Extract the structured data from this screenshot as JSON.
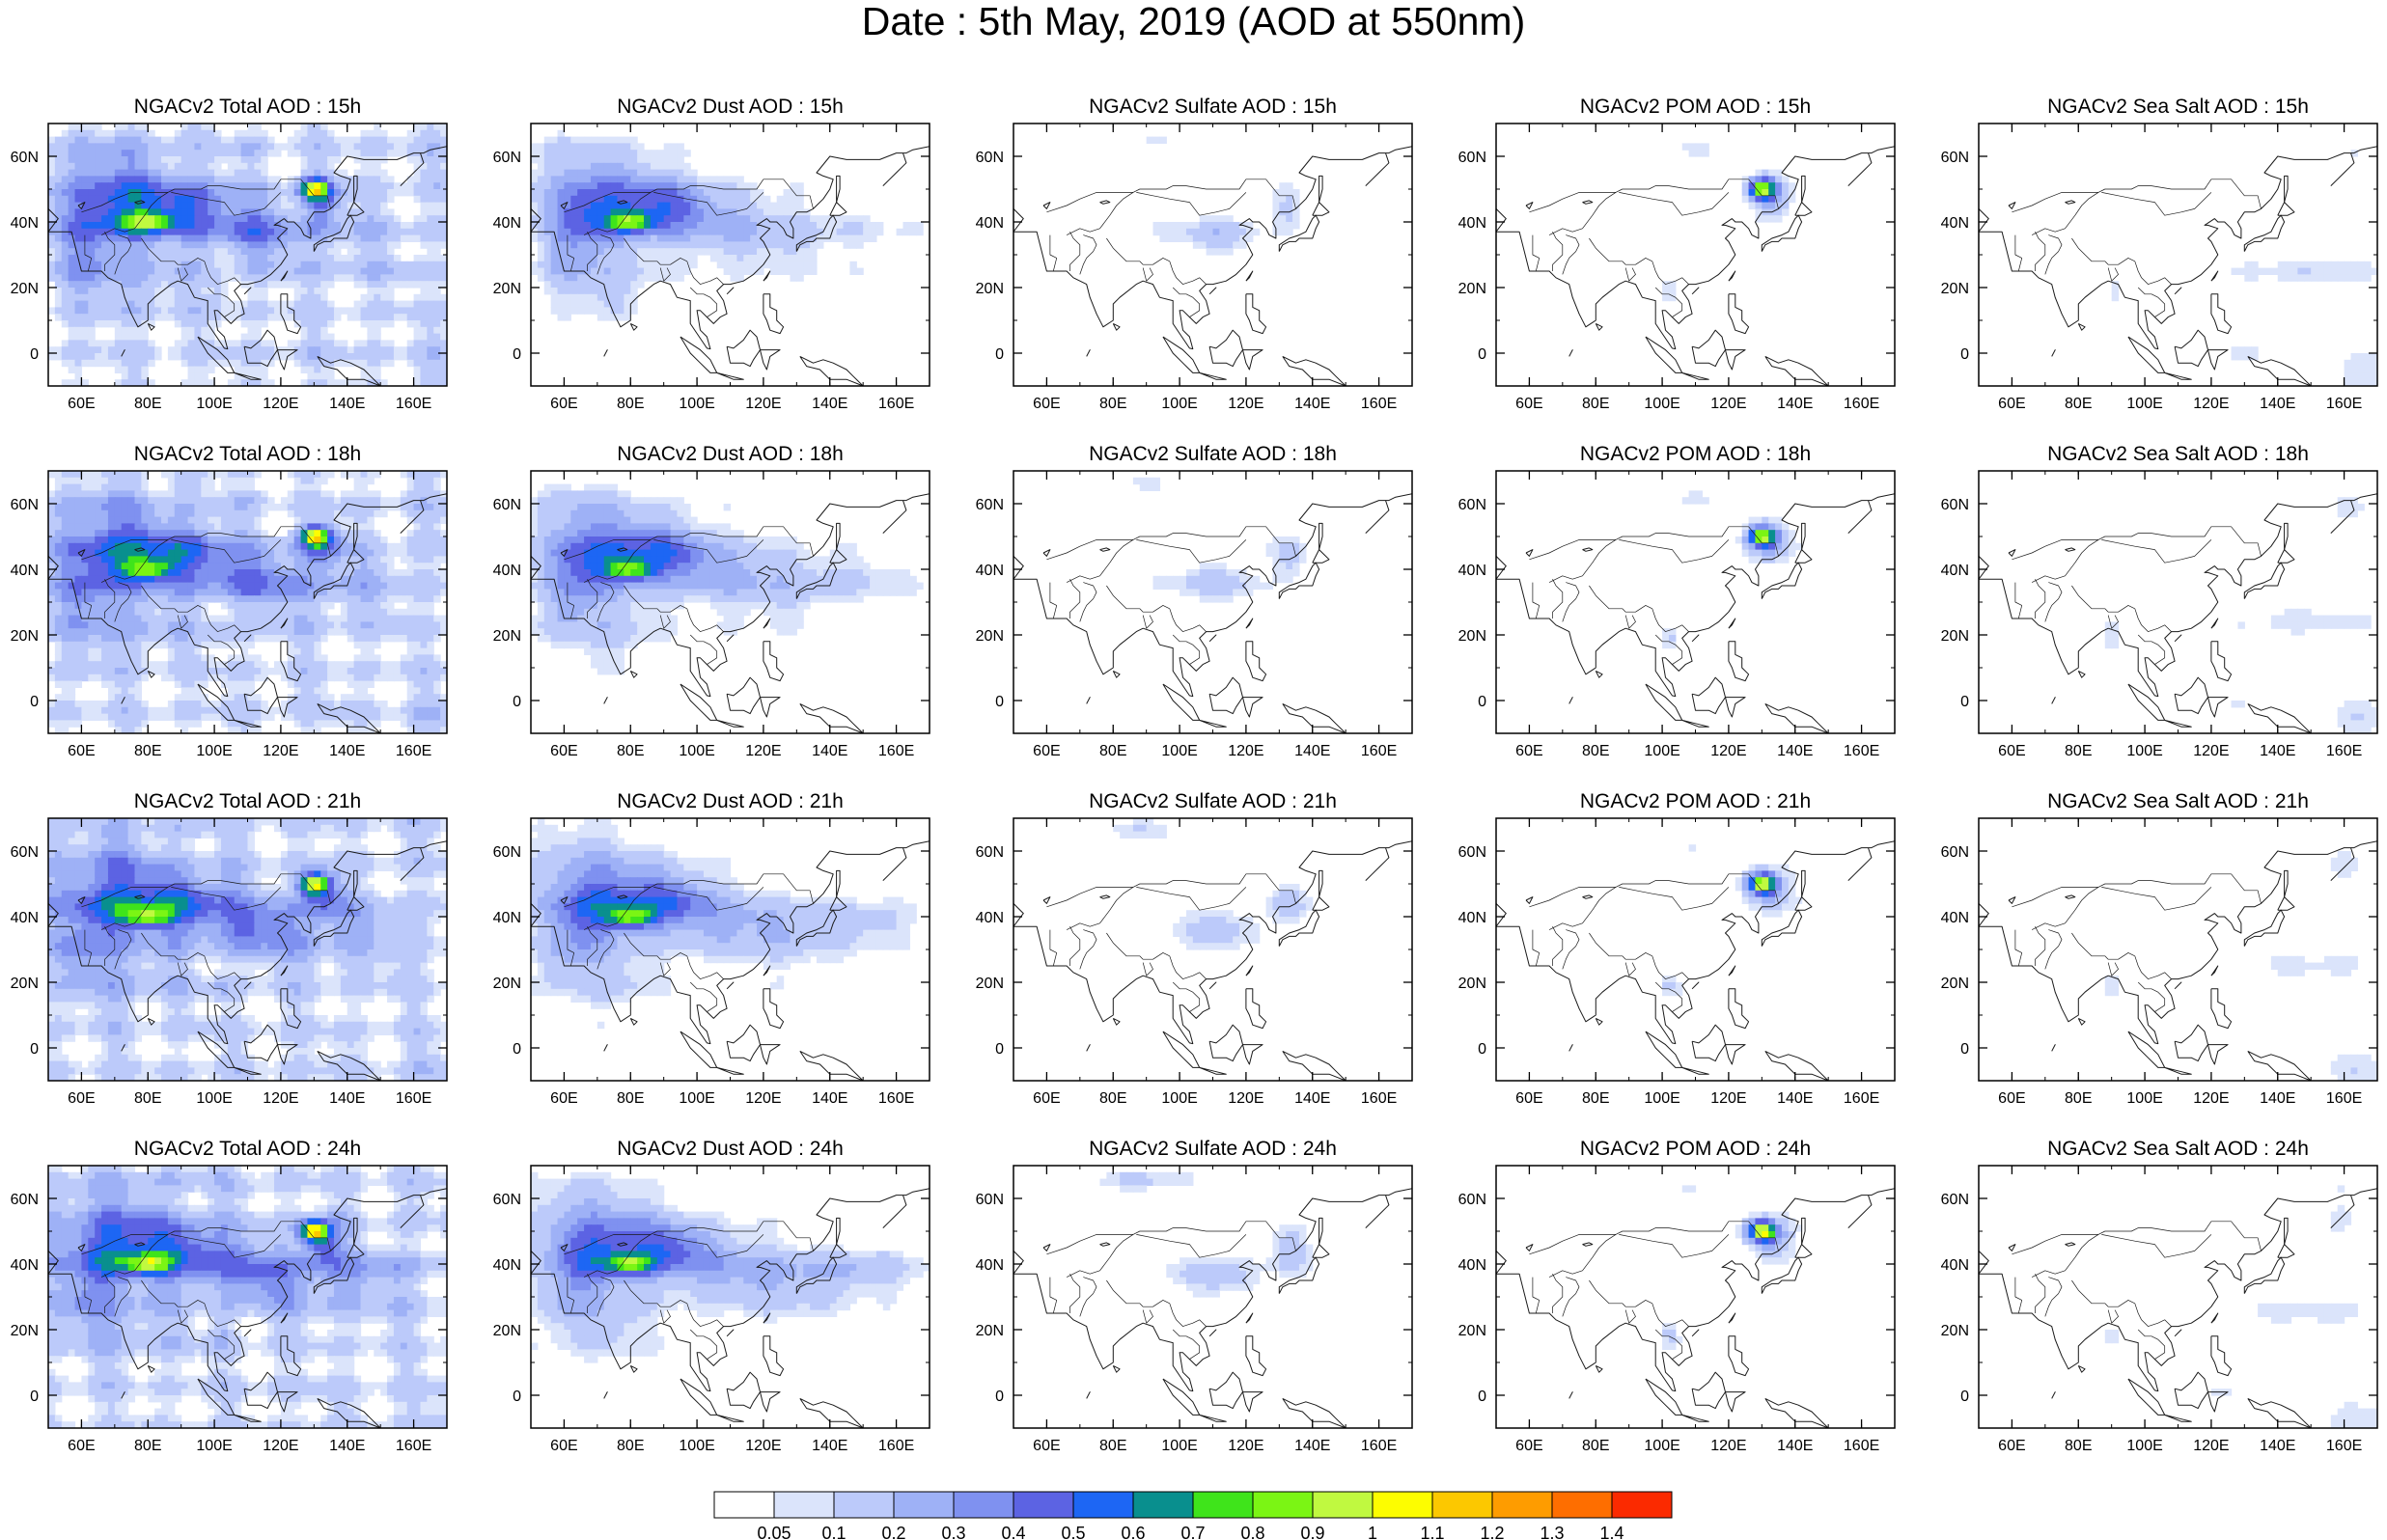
{
  "figure": {
    "title": "Date : 5th May, 2019 (AOD at 550nm)"
  },
  "chart_data": [
    {
      "type": "map",
      "title": "NGACv2 Total AOD : 15h",
      "field": "total",
      "hour": "15h"
    },
    {
      "type": "map",
      "title": "NGACv2 Dust AOD : 15h",
      "field": "dust",
      "hour": "15h"
    },
    {
      "type": "map",
      "title": "NGACv2 Sulfate AOD : 15h",
      "field": "sulfate",
      "hour": "15h"
    },
    {
      "type": "map",
      "title": "NGACv2 POM AOD : 15h",
      "field": "pom",
      "hour": "15h"
    },
    {
      "type": "map",
      "title": "NGACv2 Sea Salt AOD : 15h",
      "field": "seasalt",
      "hour": "15h"
    },
    {
      "type": "map",
      "title": "NGACv2 Total AOD : 18h",
      "field": "total",
      "hour": "18h"
    },
    {
      "type": "map",
      "title": "NGACv2 Dust AOD : 18h",
      "field": "dust",
      "hour": "18h"
    },
    {
      "type": "map",
      "title": "NGACv2 Sulfate AOD : 18h",
      "field": "sulfate",
      "hour": "18h"
    },
    {
      "type": "map",
      "title": "NGACv2 POM AOD : 18h",
      "field": "pom",
      "hour": "18h"
    },
    {
      "type": "map",
      "title": "NGACv2 Sea Salt AOD : 18h",
      "field": "seasalt",
      "hour": "18h"
    },
    {
      "type": "map",
      "title": "NGACv2 Total AOD : 21h",
      "field": "total",
      "hour": "21h"
    },
    {
      "type": "map",
      "title": "NGACv2 Dust AOD : 21h",
      "field": "dust",
      "hour": "21h"
    },
    {
      "type": "map",
      "title": "NGACv2 Sulfate AOD : 21h",
      "field": "sulfate",
      "hour": "21h"
    },
    {
      "type": "map",
      "title": "NGACv2 POM AOD : 21h",
      "field": "pom",
      "hour": "21h"
    },
    {
      "type": "map",
      "title": "NGACv2 Sea Salt AOD : 21h",
      "field": "seasalt",
      "hour": "21h"
    },
    {
      "type": "map",
      "title": "NGACv2 Total AOD : 24h",
      "field": "total",
      "hour": "24h"
    },
    {
      "type": "map",
      "title": "NGACv2 Dust AOD : 24h",
      "field": "dust",
      "hour": "24h"
    },
    {
      "type": "map",
      "title": "NGACv2 Sulfate AOD : 24h",
      "field": "sulfate",
      "hour": "24h"
    },
    {
      "type": "map",
      "title": "NGACv2 POM AOD : 24h",
      "field": "pom",
      "hour": "24h"
    },
    {
      "type": "map",
      "title": "NGACv2 Sea Salt  AOD : 24h",
      "field": "seasalt",
      "hour": "24h"
    }
  ],
  "axes": {
    "lon_range": [
      50,
      170
    ],
    "lat_range": [
      -10,
      70
    ],
    "x_ticks": [
      60,
      80,
      100,
      120,
      140,
      160
    ],
    "x_tick_labels": [
      "60E",
      "80E",
      "100E",
      "120E",
      "140E",
      "160E"
    ],
    "y_ticks": [
      0,
      20,
      40,
      60
    ],
    "y_tick_labels": [
      "0",
      "20N",
      "40N",
      "60N"
    ]
  },
  "colorbar": {
    "labels": [
      "0.05",
      "0.1",
      "0.2",
      "0.3",
      "0.4",
      "0.5",
      "0.6",
      "0.7",
      "0.8",
      "0.9",
      "1",
      "1.1",
      "1.2",
      "1.3",
      "1.4"
    ],
    "colors": [
      "#ffffff",
      "#dbe4fb",
      "#bccafa",
      "#9eb1f6",
      "#7f91f0",
      "#5c63e3",
      "#1d66f4",
      "#098f8e",
      "#3fe41b",
      "#7bf514",
      "#c0f940",
      "#fdfd00",
      "#fcc800",
      "#fe9c00",
      "#fe6e00",
      "#fb2a00"
    ]
  }
}
